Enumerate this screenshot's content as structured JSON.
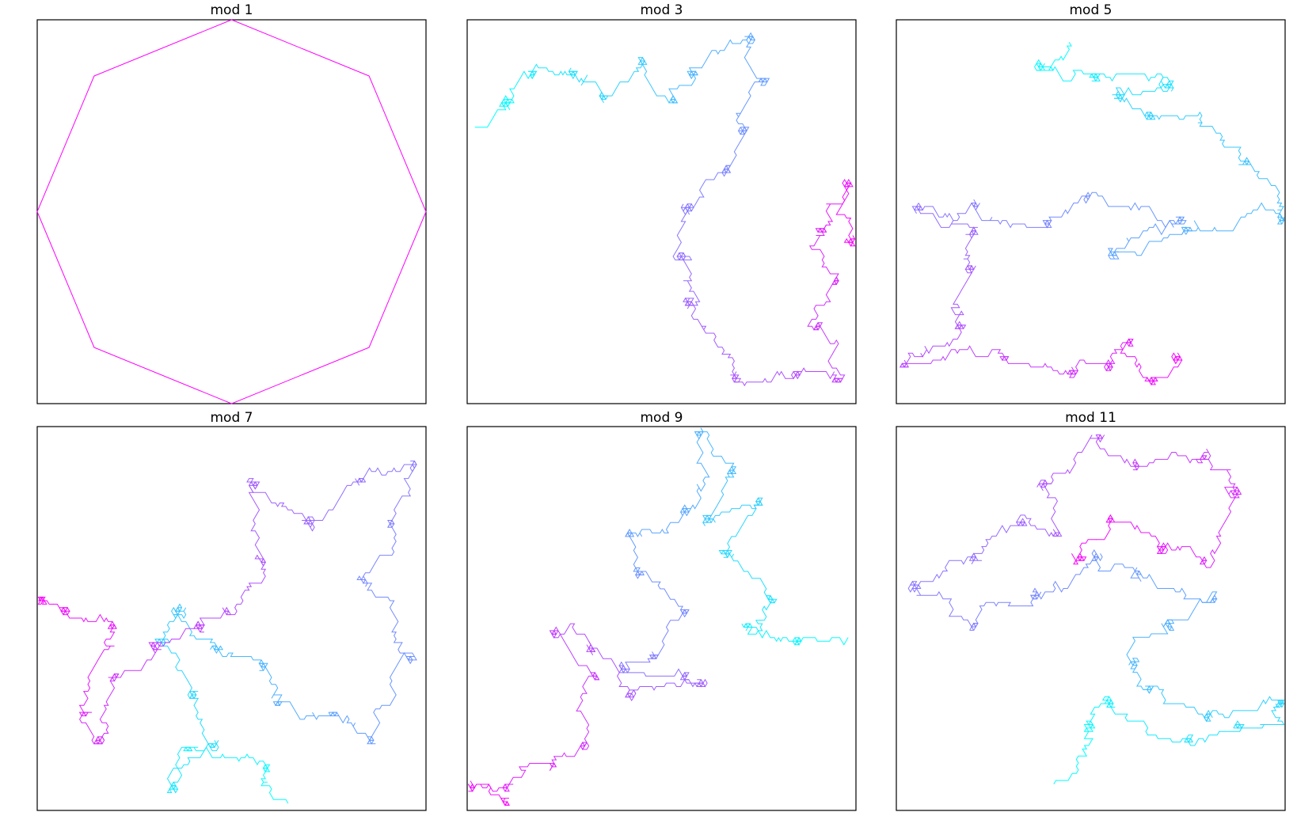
{
  "figure": {
    "colormap": {
      "start": "#00ffff",
      "end": "#ff00ff",
      "name": "cool"
    },
    "axes_visible": false
  },
  "chart_data": [
    {
      "type": "line",
      "title": "mod 1",
      "shape": "octagon",
      "xlim": [
        -1,
        1
      ],
      "ylim": [
        -1,
        1
      ],
      "vertices": [
        [
          0,
          1
        ],
        [
          0.7071,
          0.7071
        ],
        [
          1,
          0
        ],
        [
          0.7071,
          -0.7071
        ],
        [
          0,
          -1
        ],
        [
          -0.7071,
          -0.7071
        ],
        [
          -1,
          0
        ],
        [
          -0.7071,
          0.7071
        ],
        [
          0,
          1
        ]
      ]
    },
    {
      "type": "line",
      "title": "mod 3",
      "seed": 3,
      "steps": 1600,
      "xlim": [
        0,
        1
      ],
      "ylim": [
        0,
        1
      ],
      "waypoints": [
        [
          0.01,
          0.72
        ],
        [
          0.1,
          0.78
        ],
        [
          0.17,
          0.86
        ],
        [
          0.27,
          0.86
        ],
        [
          0.35,
          0.8
        ],
        [
          0.45,
          0.89
        ],
        [
          0.53,
          0.79
        ],
        [
          0.58,
          0.86
        ],
        [
          0.73,
          0.95
        ],
        [
          0.76,
          0.84
        ],
        [
          0.71,
          0.71
        ],
        [
          0.67,
          0.61
        ],
        [
          0.57,
          0.51
        ],
        [
          0.55,
          0.38
        ],
        [
          0.57,
          0.26
        ],
        [
          0.69,
          0.07
        ],
        [
          0.85,
          0.08
        ],
        [
          0.95,
          0.06
        ],
        [
          0.9,
          0.2
        ],
        [
          0.95,
          0.32
        ],
        [
          0.91,
          0.45
        ],
        [
          0.98,
          0.57
        ],
        [
          0.99,
          0.42
        ]
      ]
    },
    {
      "type": "line",
      "title": "mod 5",
      "seed": 5,
      "steps": 1800,
      "xlim": [
        0,
        1
      ],
      "ylim": [
        0,
        1
      ],
      "waypoints": [
        [
          0.45,
          0.95
        ],
        [
          0.37,
          0.88
        ],
        [
          0.51,
          0.85
        ],
        [
          0.7,
          0.83
        ],
        [
          0.57,
          0.8
        ],
        [
          0.65,
          0.75
        ],
        [
          0.9,
          0.63
        ],
        [
          0.99,
          0.48
        ],
        [
          0.75,
          0.45
        ],
        [
          0.56,
          0.39
        ],
        [
          0.73,
          0.48
        ],
        [
          0.49,
          0.54
        ],
        [
          0.39,
          0.47
        ],
        [
          0.2,
          0.52
        ],
        [
          0.06,
          0.51
        ],
        [
          0.2,
          0.45
        ],
        [
          0.19,
          0.35
        ],
        [
          0.16,
          0.2
        ],
        [
          0.02,
          0.1
        ],
        [
          0.28,
          0.12
        ],
        [
          0.45,
          0.08
        ],
        [
          0.55,
          0.1
        ],
        [
          0.6,
          0.16
        ],
        [
          0.66,
          0.06
        ],
        [
          0.72,
          0.12
        ]
      ]
    },
    {
      "type": "line",
      "title": "mod 7",
      "seed": 7,
      "steps": 1800,
      "xlim": [
        0,
        1
      ],
      "ylim": [
        0,
        1
      ],
      "waypoints": [
        [
          0.65,
          0.01
        ],
        [
          0.59,
          0.11
        ],
        [
          0.39,
          0.16
        ],
        [
          0.35,
          0.06
        ],
        [
          0.45,
          0.17
        ],
        [
          0.4,
          0.3
        ],
        [
          0.32,
          0.44
        ],
        [
          0.36,
          0.52
        ],
        [
          0.46,
          0.42
        ],
        [
          0.58,
          0.38
        ],
        [
          0.62,
          0.28
        ],
        [
          0.76,
          0.25
        ],
        [
          0.86,
          0.18
        ],
        [
          0.96,
          0.4
        ],
        [
          0.84,
          0.6
        ],
        [
          0.91,
          0.75
        ],
        [
          0.97,
          0.9
        ],
        [
          0.83,
          0.86
        ],
        [
          0.7,
          0.75
        ],
        [
          0.56,
          0.85
        ],
        [
          0.58,
          0.65
        ],
        [
          0.49,
          0.52
        ],
        [
          0.42,
          0.48
        ],
        [
          0.3,
          0.43
        ],
        [
          0.2,
          0.35
        ],
        [
          0.16,
          0.18
        ],
        [
          0.12,
          0.25
        ],
        [
          0.19,
          0.48
        ],
        [
          0.07,
          0.52
        ],
        [
          0.01,
          0.55
        ]
      ]
    },
    {
      "type": "line",
      "title": "mod 9",
      "seed": 9,
      "steps": 1700,
      "xlim": [
        0,
        1
      ],
      "ylim": [
        0,
        1
      ],
      "waypoints": [
        [
          0.99,
          0.45
        ],
        [
          0.85,
          0.44
        ],
        [
          0.72,
          0.48
        ],
        [
          0.78,
          0.55
        ],
        [
          0.67,
          0.67
        ],
        [
          0.75,
          0.8
        ],
        [
          0.62,
          0.76
        ],
        [
          0.68,
          0.88
        ],
        [
          0.6,
          0.98
        ],
        [
          0.56,
          0.78
        ],
        [
          0.42,
          0.72
        ],
        [
          0.44,
          0.62
        ],
        [
          0.56,
          0.52
        ],
        [
          0.48,
          0.4
        ],
        [
          0.4,
          0.37
        ],
        [
          0.56,
          0.35
        ],
        [
          0.6,
          0.33
        ],
        [
          0.42,
          0.3
        ],
        [
          0.32,
          0.42
        ],
        [
          0.22,
          0.46
        ],
        [
          0.33,
          0.35
        ],
        [
          0.3,
          0.17
        ],
        [
          0.22,
          0.12
        ],
        [
          0.1,
          0.06
        ],
        [
          0.01,
          0.06
        ],
        [
          0.1,
          0.02
        ]
      ]
    },
    {
      "type": "line",
      "title": "mod 11",
      "seed": 11,
      "steps": 1800,
      "xlim": [
        0,
        1
      ],
      "ylim": [
        0,
        1
      ],
      "waypoints": [
        [
          0.4,
          0.06
        ],
        [
          0.5,
          0.22
        ],
        [
          0.55,
          0.28
        ],
        [
          0.75,
          0.18
        ],
        [
          0.88,
          0.22
        ],
        [
          0.99,
          0.28
        ],
        [
          0.8,
          0.25
        ],
        [
          0.65,
          0.32
        ],
        [
          0.61,
          0.38
        ],
        [
          0.7,
          0.48
        ],
        [
          0.82,
          0.55
        ],
        [
          0.62,
          0.62
        ],
        [
          0.51,
          0.66
        ],
        [
          0.36,
          0.56
        ],
        [
          0.2,
          0.48
        ],
        [
          0.05,
          0.58
        ],
        [
          0.2,
          0.66
        ],
        [
          0.32,
          0.75
        ],
        [
          0.41,
          0.72
        ],
        [
          0.38,
          0.85
        ],
        [
          0.52,
          0.97
        ],
        [
          0.62,
          0.9
        ],
        [
          0.79,
          0.92
        ],
        [
          0.87,
          0.83
        ],
        [
          0.79,
          0.65
        ],
        [
          0.68,
          0.68
        ],
        [
          0.55,
          0.76
        ],
        [
          0.47,
          0.66
        ]
      ]
    }
  ]
}
